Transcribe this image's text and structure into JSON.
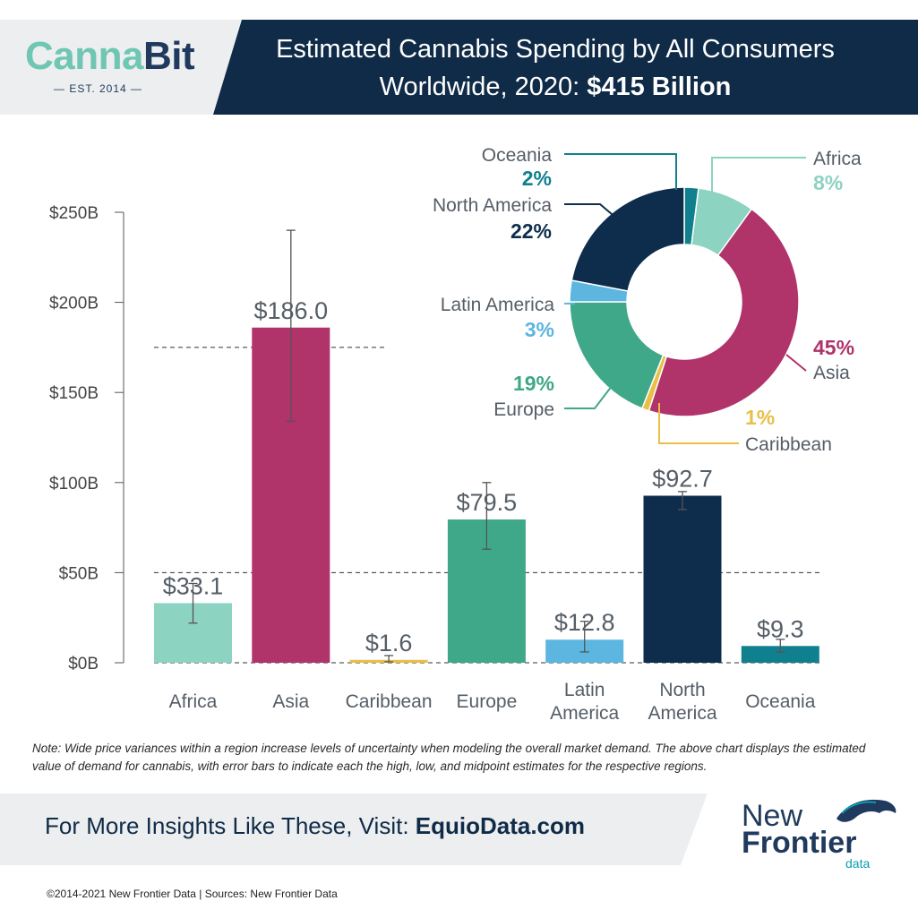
{
  "logo": {
    "canna": "Canna",
    "bit": "Bit",
    "established": "— EST. 2014 —"
  },
  "header": {
    "title_line1": "Estimated Cannabis Spending by All Consumers",
    "title_line2_prefix": "Worldwide, 2020: ",
    "title_line2_bold": "$415 Billion"
  },
  "chart_data": [
    {
      "type": "bar",
      "categories": [
        "Africa",
        "Asia",
        "Caribbean",
        "Europe",
        "Latin America",
        "North America",
        "Oceania"
      ],
      "category_lines": [
        [
          "Africa"
        ],
        [
          "Asia"
        ],
        [
          "Caribbean"
        ],
        [
          "Europe"
        ],
        [
          "Latin",
          "America"
        ],
        [
          "North",
          "America"
        ],
        [
          "Oceania"
        ]
      ],
      "values": [
        33.1,
        186.0,
        1.6,
        79.5,
        12.8,
        92.7,
        9.3
      ],
      "value_labels": [
        "$33.1",
        "$186.0",
        "$1.6",
        "$79.5",
        "$12.8",
        "$92.7",
        "$9.3"
      ],
      "error_low": [
        22,
        134,
        0.5,
        63,
        6,
        85,
        6
      ],
      "error_high": [
        44,
        240,
        4,
        100,
        23,
        95,
        13
      ],
      "colors": [
        "#8dd3c2",
        "#b0336a",
        "#e8bf47",
        "#3fa888",
        "#5cb6df",
        "#0e2d4c",
        "#11808e"
      ],
      "yticks": [
        0,
        50,
        100,
        150,
        200,
        250
      ],
      "ytick_labels": [
        "$0B",
        "$50B",
        "$100B",
        "$150B",
        "$200B",
        "$250B"
      ],
      "ylim": [
        0,
        250
      ],
      "reference_lines": [
        0,
        50,
        175
      ]
    },
    {
      "type": "pie",
      "labels": [
        "Oceania",
        "Africa",
        "Asia",
        "Caribbean",
        "Europe",
        "Latin America",
        "North America"
      ],
      "values": [
        2,
        8,
        45,
        1,
        19,
        3,
        22
      ],
      "percent_labels": [
        "2%",
        "8%",
        "45%",
        "1%",
        "19%",
        "3%",
        "22%"
      ],
      "colors": [
        "#11808e",
        "#8dd3c2",
        "#b0336a",
        "#e8bf47",
        "#3fa888",
        "#5cb6df",
        "#0e2d4c"
      ],
      "percent_colors": [
        "#11808e",
        "#8dd3c2",
        "#b0336a",
        "#e8bf47",
        "#3fa888",
        "#5cb6df",
        "#0e2d4c"
      ]
    }
  ],
  "note": "Note: Wide price variances within a region increase levels of uncertainty when modeling the overall market demand. The above chart displays the estimated value of demand for cannabis, with error bars to indicate each the high, low, and midpoint estimates for the respective regions.",
  "cta": {
    "prefix": "For More Insights Like These, Visit: ",
    "link": "EquioData.com"
  },
  "new_frontier_logo": {
    "new": "New",
    "frontier": "Frontier",
    "data": "data"
  },
  "footer": "©2014-2021  New Frontier Data | Sources: New Frontier Data"
}
